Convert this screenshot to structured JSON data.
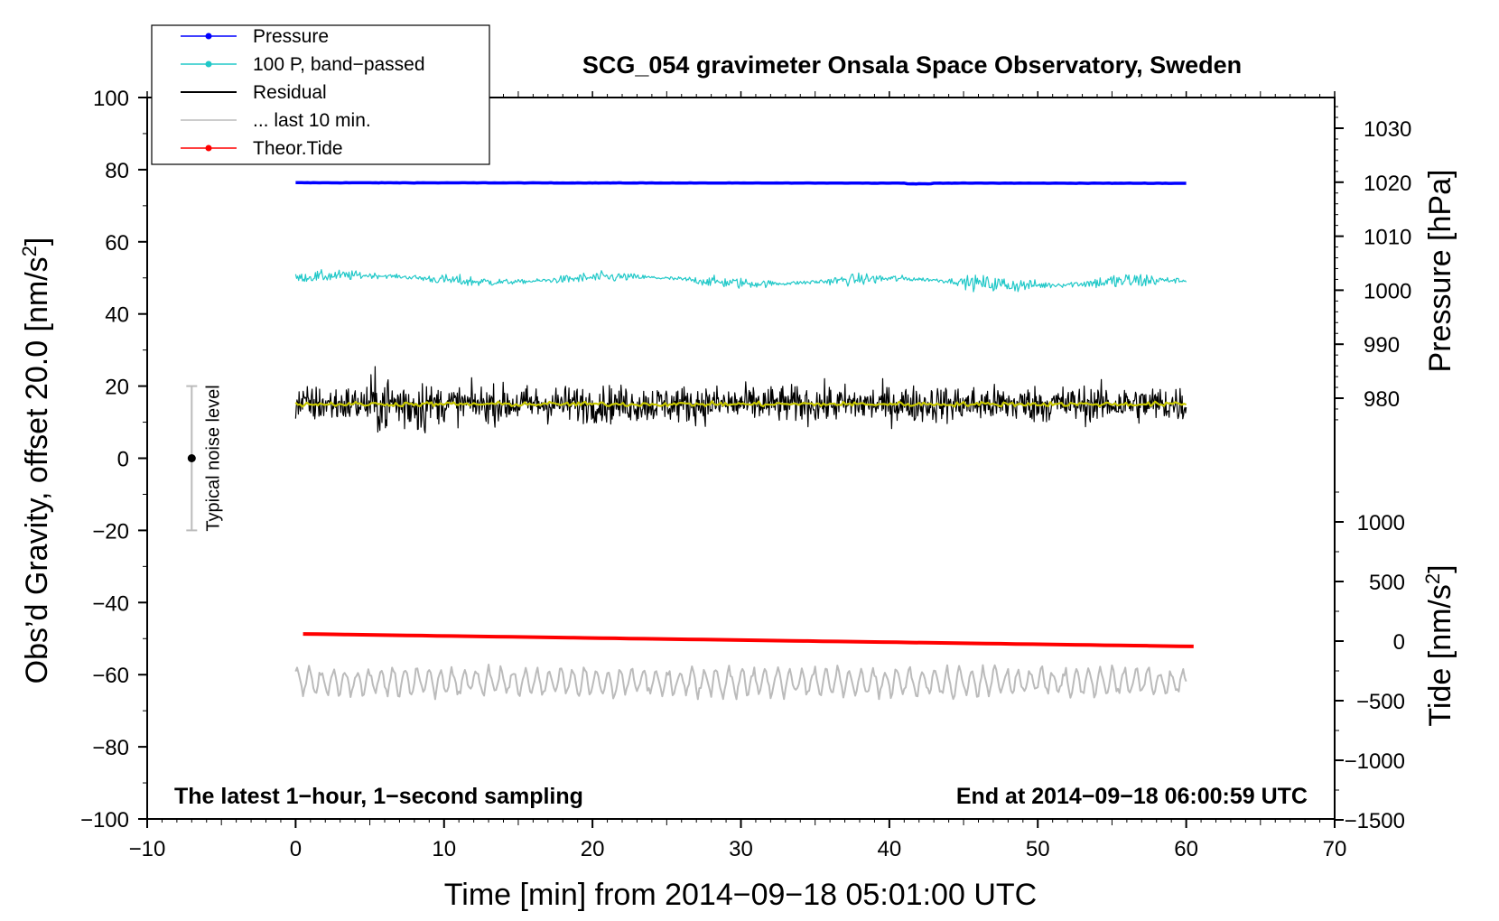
{
  "chart_data": {
    "type": "line",
    "title": "SCG_054 gravimeter Onsala Space Observatory, Sweden",
    "xlabel": "Time [min] from 2014−09−18 05:01:00 UTC",
    "ylabel_left": "Obs’d Gravity, offset 20.0 [nm/s",
    "ylabel_left_sup": "2",
    "ylabel_left_close": "]",
    "ylabel_pressure": "Pressure [hPa]",
    "ylabel_tide": "Tide [nm/s",
    "ylabel_tide_sup": "2",
    "ylabel_tide_close": "]",
    "xlim": [
      -10,
      70
    ],
    "ylim_left": [
      -100,
      100
    ],
    "pressure_range": [
      975,
      1035
    ],
    "tide_range": [
      -1500,
      1500
    ],
    "x_ticks": [
      "−10",
      "0",
      "10",
      "20",
      "30",
      "40",
      "50",
      "60",
      "70"
    ],
    "x_tick_values": [
      -10,
      0,
      10,
      20,
      30,
      40,
      50,
      60,
      70
    ],
    "y_left_ticks": [
      "100",
      "80",
      "60",
      "40",
      "20",
      "0",
      "−20",
      "−40",
      "−60",
      "−80",
      "−100"
    ],
    "y_left_tick_values": [
      100,
      80,
      60,
      40,
      20,
      0,
      -20,
      -40,
      -60,
      -80,
      -100
    ],
    "pressure_ticks": [
      "1030",
      "1020",
      "1010",
      "1000",
      "990",
      "980"
    ],
    "pressure_tick_values": [
      1030,
      1020,
      1010,
      1000,
      990,
      980
    ],
    "tide_ticks": [
      "1000",
      "500",
      "0",
      "−500",
      "−1000",
      "−1500"
    ],
    "tide_tick_values": [
      1000,
      500,
      0,
      -500,
      -1000,
      -1500
    ],
    "legend": [
      {
        "label": "Pressure",
        "color": "#0000ff",
        "marker": true
      },
      {
        "label": "100 P, band−passed",
        "color": "#20c8c8",
        "marker": true
      },
      {
        "label": "Residual",
        "color": "#000000",
        "marker": false
      },
      {
        "label": "... last 10 min.",
        "color": "#bbbbbb",
        "marker": false
      },
      {
        "label": "Theor.Tide",
        "color": "#ff0000",
        "marker": true
      }
    ],
    "series": [
      {
        "name": "Pressure",
        "color": "#0000ff",
        "x_range": [
          0,
          60
        ],
        "approx_hpa": [
          1019.9,
          1019.8
        ]
      },
      {
        "name": "100 P, band-passed",
        "color": "#20c8c8",
        "x_range": [
          0,
          60
        ],
        "approx_level": 50,
        "approx_amplitude": 2.5
      },
      {
        "name": "Residual",
        "color": "#000000",
        "x_range": [
          0,
          60
        ],
        "approx_level": 15,
        "approx_amplitude": 4
      },
      {
        "name": "Residual smoothed",
        "color": "#c8c800",
        "x_range": [
          0,
          60
        ],
        "approx_level": 15
      },
      {
        "name": "... last 10 min.",
        "color": "#bbbbbb",
        "x_range": [
          0,
          60
        ],
        "approx_level": -62,
        "approx_amplitude": 3.5
      },
      {
        "name": "Theor.Tide",
        "color": "#ff0000",
        "x_range": [
          0.5,
          60.5
        ],
        "approx_tide_nms2": [
          60,
          -45
        ]
      }
    ],
    "noise_bar": {
      "x": -7,
      "center": 0,
      "low": -20,
      "high": 20,
      "label": "Typical noise level"
    },
    "annotation_left": "The latest 1−hour, 1−second sampling",
    "annotation_right": "End at 2014−09−18 06:00:59 UTC"
  }
}
